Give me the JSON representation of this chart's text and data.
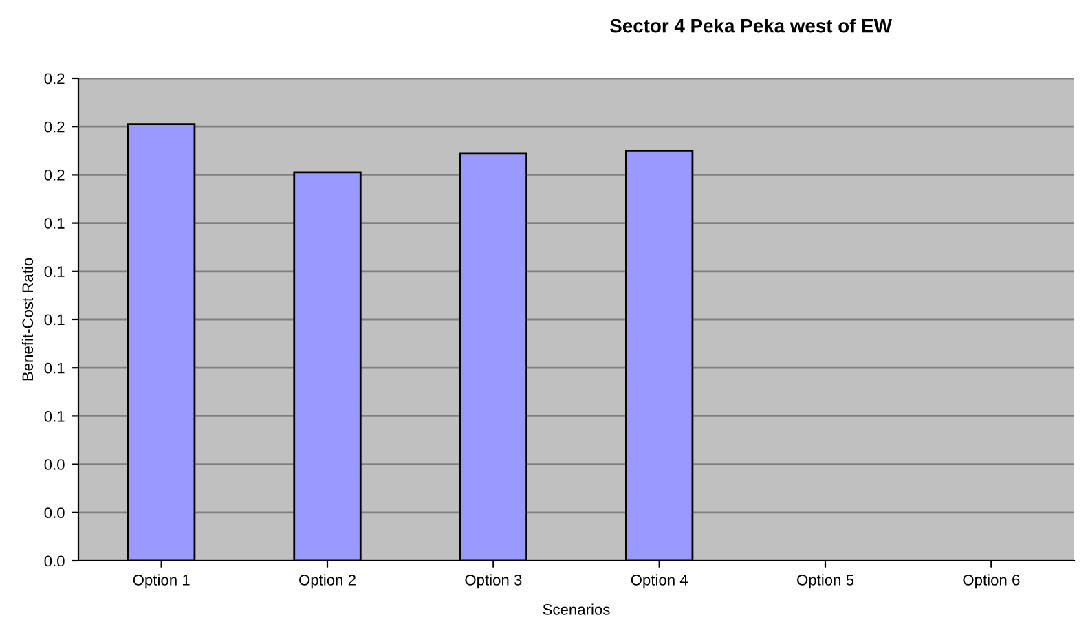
{
  "chart_data": {
    "type": "bar",
    "title": "Sector 4 Peka Peka west of EW",
    "xlabel": "Scenarios",
    "ylabel": "Benefit-Cost Ratio",
    "categories": [
      "Option 1",
      "Option 2",
      "Option 3",
      "Option 4",
      "Option 5",
      "Option 6"
    ],
    "values": [
      0.181,
      0.161,
      0.169,
      0.17,
      null,
      null
    ],
    "color": "#9999ff",
    "ylim": [
      0,
      0.2
    ],
    "yticks": [
      {
        "value": 0,
        "label": "0.0"
      },
      {
        "value": 0.02,
        "label": "0.0"
      },
      {
        "value": 0.04,
        "label": "0.0"
      },
      {
        "value": 0.06,
        "label": "0.1"
      },
      {
        "value": 0.08,
        "label": "0.1"
      },
      {
        "value": 0.1,
        "label": "0.1"
      },
      {
        "value": 0.12,
        "label": "0.1"
      },
      {
        "value": 0.14,
        "label": "0.1"
      },
      {
        "value": 0.16,
        "label": "0.2"
      },
      {
        "value": 0.18,
        "label": "0.2"
      },
      {
        "value": 0.2,
        "label": "0.2"
      }
    ],
    "grid": "y"
  }
}
